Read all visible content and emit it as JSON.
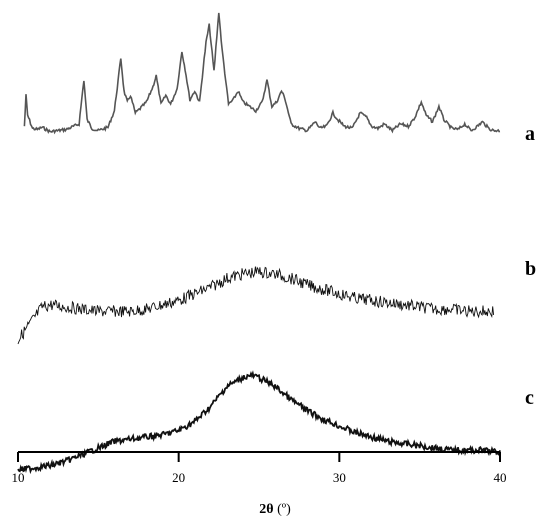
{
  "chart_data": {
    "type": "line",
    "title": "",
    "xlabel_main": "2θ",
    "xlabel_unit": " (º)",
    "xlim": [
      10,
      40
    ],
    "xticks": [
      10,
      20,
      30,
      40
    ],
    "y_axis_shown": false,
    "grid": false,
    "legend": "series labels at right end of each trace",
    "series": [
      {
        "name": "a",
        "label": "a",
        "x": [
          10.4,
          10.5,
          10.6,
          10.9,
          11.2,
          11.5,
          12.0,
          13.0,
          13.8,
          14.1,
          14.3,
          14.6,
          15.0,
          15.6,
          16.0,
          16.4,
          16.6,
          16.8,
          17.0,
          17.3,
          17.6,
          18.0,
          18.4,
          18.6,
          18.9,
          19.2,
          19.5,
          19.9,
          20.2,
          20.4,
          20.7,
          21.0,
          21.3,
          21.7,
          21.9,
          22.2,
          22.5,
          22.7,
          23.1,
          23.4,
          23.7,
          24.0,
          24.4,
          24.8,
          25.2,
          25.5,
          25.8,
          26.1,
          26.4,
          26.6,
          27.0,
          27.5,
          28.0,
          28.5,
          28.8,
          29.2,
          29.6,
          29.9,
          30.3,
          30.8,
          31.3,
          31.7,
          32.0,
          32.4,
          32.8,
          33.3,
          33.8,
          34.3,
          34.7,
          35.1,
          35.4,
          35.8,
          36.2,
          36.5,
          37.0,
          37.4,
          37.8,
          38.2,
          38.6,
          38.9,
          39.3,
          39.6,
          40.0
        ],
        "y": [
          8,
          36,
          18,
          6,
          5,
          7,
          3,
          5,
          10,
          50,
          14,
          6,
          4,
          7,
          22,
          70,
          40,
          30,
          36,
          20,
          24,
          30,
          44,
          54,
          28,
          36,
          28,
          42,
          76,
          60,
          32,
          40,
          30,
          84,
          100,
          58,
          112,
          78,
          28,
          32,
          40,
          30,
          26,
          22,
          30,
          50,
          26,
          30,
          40,
          34,
          10,
          6,
          4,
          12,
          6,
          8,
          20,
          14,
          8,
          6,
          20,
          16,
          8,
          6,
          10,
          4,
          10,
          8,
          16,
          30,
          18,
          12,
          26,
          14,
          6,
          5,
          10,
          4,
          8,
          12,
          6,
          4,
          4
        ],
        "offset": 0
      },
      {
        "name": "b",
        "label": "b",
        "x": [
          10.0,
          10.5,
          11.0,
          11.5,
          12.0,
          13.0,
          14.0,
          15.0,
          16.0,
          17.0,
          18.0,
          19.0,
          20.0,
          21.0,
          22.0,
          23.0,
          24.0,
          25.0,
          26.0,
          27.0,
          28.0,
          29.0,
          30.0,
          31.0,
          32.0,
          33.0,
          34.0,
          35.0,
          36.0,
          37.0,
          38.0,
          39.0,
          39.6
        ],
        "y": [
          0,
          10,
          20,
          30,
          32,
          30,
          28,
          26,
          26,
          26,
          28,
          32,
          36,
          42,
          48,
          56,
          60,
          62,
          60,
          56,
          50,
          46,
          42,
          38,
          36,
          34,
          32,
          30,
          28,
          28,
          26,
          26,
          26
        ],
        "offset": -205
      },
      {
        "name": "c",
        "label": "c",
        "x": [
          10.0,
          11.0,
          12.0,
          13.0,
          14.0,
          15.0,
          16.0,
          17.0,
          18.0,
          19.0,
          20.0,
          21.0,
          22.0,
          23.0,
          24.0,
          24.5,
          25.0,
          26.0,
          27.0,
          28.0,
          29.0,
          30.0,
          31.0,
          32.0,
          33.0,
          34.0,
          35.0,
          36.0,
          37.0,
          38.0,
          39.0,
          40.0
        ],
        "y": [
          0,
          2,
          4,
          8,
          14,
          20,
          26,
          28,
          30,
          32,
          36,
          44,
          58,
          76,
          84,
          86,
          84,
          76,
          64,
          54,
          46,
          40,
          34,
          30,
          26,
          24,
          22,
          20,
          18,
          18,
          18,
          16
        ],
        "offset": -335
      }
    ]
  }
}
